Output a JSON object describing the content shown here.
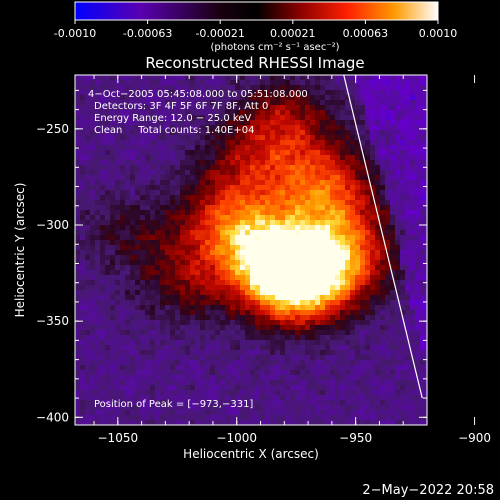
{
  "colorbar": {
    "ticks": [
      "-0.0010",
      "-0.00063",
      "-0.00021",
      "0.00021",
      "0.00063",
      "0.0010"
    ],
    "range": [
      -0.001,
      0.001
    ],
    "unit_label": "(photons cm⁻² s⁻¹ asec⁻²)",
    "colormap": [
      "#0000ff",
      "#6a00aa",
      "#000000",
      "#8a0000",
      "#ff0000",
      "#ff8000",
      "#ffd000",
      "#ffffff"
    ]
  },
  "chart_data": {
    "type": "heatmap",
    "title": "Reconstructed RHESSI Image",
    "xlabel": "Heliocentric X (arcsec)",
    "ylabel": "Heliocentric Y (arcsec)",
    "xlim": [
      -1068,
      -920
    ],
    "ylim": [
      -404,
      -222
    ],
    "x_ticks": [
      "−1050",
      "−1000",
      "−950",
      "−900"
    ],
    "x_tick_values": [
      -1050,
      -1000,
      -950,
      -900
    ],
    "y_ticks": [
      "−250",
      "−300",
      "−350",
      "−400"
    ],
    "y_tick_values": [
      -250,
      -300,
      -350,
      -400
    ],
    "annotations": [
      "4−Oct−2005 05:45:08.000 to 05:51:08.000",
      "Detectors: 3F 4F 5F 6F 7F 8F, Att 0",
      "Energy Range: 12.0 − 25.0 keV",
      "Clean     Total counts: 1.40E+04"
    ],
    "peak_label": "Position of Peak = [−973,−331]",
    "peak": [
      -973,
      -331
    ],
    "limb_line": [
      [
        -955,
        -222
      ],
      [
        -922,
        -390
      ]
    ],
    "sources": [
      {
        "x": -975,
        "y": -331,
        "intensity": 1.0
      },
      {
        "x": -985,
        "y": -315,
        "intensity": 0.65
      },
      {
        "x": -1003,
        "y": -300,
        "intensity": 0.55
      },
      {
        "x": -955,
        "y": -318,
        "intensity": 0.55
      },
      {
        "x": -960,
        "y": -295,
        "intensity": 0.4
      },
      {
        "x": -965,
        "y": -275,
        "intensity": 0.45
      },
      {
        "x": -995,
        "y": -270,
        "intensity": 0.35
      },
      {
        "x": -980,
        "y": -245,
        "intensity": 0.4
      },
      {
        "x": -1020,
        "y": -330,
        "intensity": 0.3
      },
      {
        "x": -1045,
        "y": -305,
        "intensity": 0.2
      }
    ]
  },
  "footer": {
    "date": "2−May−2022 20:58"
  }
}
